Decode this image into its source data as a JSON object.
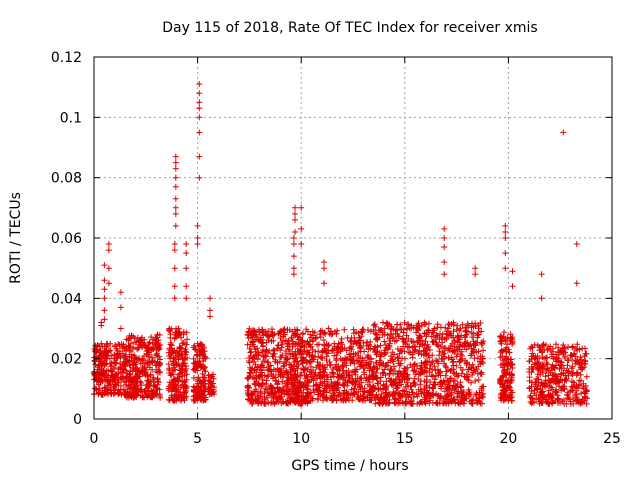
{
  "chart_data": {
    "type": "scatter",
    "title": "Day 115 of 2018, Rate Of TEC Index for receiver xmis",
    "xlabel": "GPS time / hours",
    "ylabel": "ROTI / TECUs",
    "xlim": [
      0,
      25
    ],
    "ylim": [
      0,
      0.12
    ],
    "xticks": [
      0,
      5,
      10,
      15,
      20,
      25
    ],
    "xtick_labels": [
      "0",
      "5",
      "10",
      "15",
      "20",
      "25"
    ],
    "yticks": [
      0,
      0.02,
      0.04,
      0.06,
      0.08,
      0.1,
      0.12
    ],
    "ytick_labels": [
      "0",
      "0.02",
      "0.04",
      "0.06",
      "0.08",
      "0.1",
      "0.12"
    ],
    "grid": true,
    "marker": "+",
    "color": "#e00000",
    "series": [
      {
        "name": "ROTI",
        "clusters": [
          {
            "x_range": [
              0.0,
              1.5
            ],
            "y_range": [
              0.008,
              0.025
            ],
            "n": 260
          },
          {
            "x_range": [
              1.5,
              3.2
            ],
            "y_range": [
              0.007,
              0.028
            ],
            "n": 340
          },
          {
            "x_range": [
              3.6,
              4.5
            ],
            "y_range": [
              0.006,
              0.03
            ],
            "n": 200
          },
          {
            "x_range": [
              4.8,
              5.4
            ],
            "y_range": [
              0.006,
              0.025
            ],
            "n": 150
          },
          {
            "x_range": [
              5.5,
              5.8
            ],
            "y_range": [
              0.008,
              0.015
            ],
            "n": 30
          },
          {
            "x_range": [
              7.4,
              9.5
            ],
            "y_range": [
              0.005,
              0.03
            ],
            "n": 380
          },
          {
            "x_range": [
              9.5,
              10.4
            ],
            "y_range": [
              0.005,
              0.03
            ],
            "n": 220
          },
          {
            "x_range": [
              10.4,
              13.5
            ],
            "y_range": [
              0.006,
              0.03
            ],
            "n": 480
          },
          {
            "x_range": [
              13.5,
              16.0
            ],
            "y_range": [
              0.005,
              0.032
            ],
            "n": 420
          },
          {
            "x_range": [
              16.0,
              18.8
            ],
            "y_range": [
              0.005,
              0.032
            ],
            "n": 440
          },
          {
            "x_range": [
              19.6,
              20.2
            ],
            "y_range": [
              0.006,
              0.03
            ],
            "n": 150
          },
          {
            "x_range": [
              21.0,
              23.8
            ],
            "y_range": [
              0.005,
              0.025
            ],
            "n": 380
          }
        ],
        "spikes": [
          {
            "x": 0.35,
            "y_values": [
              0.02,
              0.025,
              0.031,
              0.032
            ]
          },
          {
            "x": 0.5,
            "y_values": [
              0.033,
              0.036,
              0.04,
              0.043,
              0.046,
              0.051
            ]
          },
          {
            "x": 0.72,
            "y_values": [
              0.045,
              0.05,
              0.056,
              0.058
            ]
          },
          {
            "x": 1.3,
            "y_values": [
              0.03,
              0.037,
              0.042
            ]
          },
          {
            "x": 3.9,
            "y_values": [
              0.04,
              0.044,
              0.05,
              0.056,
              0.058
            ]
          },
          {
            "x": 3.95,
            "y_values": [
              0.064,
              0.068,
              0.07,
              0.073,
              0.077,
              0.08,
              0.083,
              0.085,
              0.087
            ]
          },
          {
            "x": 4.45,
            "y_values": [
              0.04,
              0.044,
              0.05,
              0.055,
              0.058
            ]
          },
          {
            "x": 5.0,
            "y_values": [
              0.058,
              0.06,
              0.064
            ]
          },
          {
            "x": 5.08,
            "y_values": [
              0.08,
              0.087,
              0.095,
              0.1,
              0.103,
              0.105,
              0.108,
              0.111
            ]
          },
          {
            "x": 5.6,
            "y_values": [
              0.034,
              0.036,
              0.04
            ]
          },
          {
            "x": 9.65,
            "y_values": [
              0.048,
              0.05,
              0.054,
              0.058,
              0.06
            ]
          },
          {
            "x": 9.7,
            "y_values": [
              0.062,
              0.066,
              0.068,
              0.07
            ]
          },
          {
            "x": 10.0,
            "y_values": [
              0.058,
              0.063,
              0.07
            ]
          },
          {
            "x": 11.1,
            "y_values": [
              0.045,
              0.05,
              0.052
            ]
          },
          {
            "x": 16.9,
            "y_values": [
              0.048,
              0.052,
              0.057,
              0.06,
              0.063
            ]
          },
          {
            "x": 18.4,
            "y_values": [
              0.048,
              0.05
            ]
          },
          {
            "x": 19.85,
            "y_values": [
              0.05,
              0.055,
              0.06,
              0.062,
              0.064
            ]
          },
          {
            "x": 20.2,
            "y_values": [
              0.044,
              0.049
            ]
          },
          {
            "x": 21.6,
            "y_values": [
              0.04,
              0.048
            ]
          },
          {
            "x": 22.65,
            "y_values": [
              0.095
            ]
          },
          {
            "x": 23.3,
            "y_values": [
              0.045,
              0.058
            ]
          }
        ]
      }
    ]
  }
}
